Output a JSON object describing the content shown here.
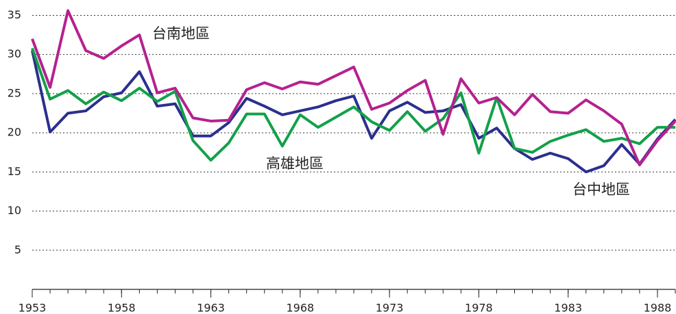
{
  "chart_data": {
    "type": "line",
    "x": [
      1953,
      1954,
      1955,
      1956,
      1957,
      1958,
      1959,
      1960,
      1961,
      1962,
      1963,
      1964,
      1965,
      1966,
      1967,
      1968,
      1969,
      1970,
      1971,
      1972,
      1973,
      1974,
      1975,
      1976,
      1977,
      1978,
      1979,
      1980,
      1981,
      1982,
      1983,
      1984,
      1985,
      1986,
      1987,
      1988,
      1989
    ],
    "series": [
      {
        "name": "台中地區",
        "color": "#2b2f8e",
        "values": [
          30.5,
          20.1,
          22.5,
          22.8,
          24.6,
          25.1,
          27.8,
          23.4,
          23.7,
          19.6,
          19.6,
          21.3,
          24.4,
          23.4,
          22.3,
          22.8,
          23.3,
          24.1,
          24.7,
          19.3,
          22.8,
          23.9,
          22.6,
          22.8,
          23.6,
          19.3,
          20.6,
          18.0,
          16.6,
          17.4,
          16.7,
          15.0,
          15.8,
          18.5,
          16.0,
          19.2,
          21.7
        ]
      },
      {
        "name": "高雄地區",
        "color": "#13a04a",
        "values": [
          30.8,
          24.3,
          25.4,
          23.7,
          25.2,
          24.1,
          25.7,
          24.0,
          25.3,
          19.0,
          16.5,
          18.7,
          22.4,
          22.4,
          18.3,
          22.3,
          20.7,
          22.0,
          23.3,
          21.4,
          20.3,
          22.7,
          20.2,
          21.8,
          25.1,
          17.4,
          24.5,
          18.0,
          17.5,
          18.9,
          19.7,
          20.4,
          18.9,
          19.3,
          18.6,
          20.7,
          20.7
        ]
      },
      {
        "name": "台南地區",
        "color": "#b5218f",
        "values": [
          32.0,
          25.8,
          35.6,
          30.5,
          29.5,
          31.1,
          32.5,
          25.1,
          25.7,
          21.9,
          21.5,
          21.6,
          25.5,
          26.4,
          25.6,
          26.5,
          26.2,
          27.3,
          28.4,
          23.0,
          23.8,
          25.4,
          26.7,
          19.8,
          26.9,
          23.8,
          24.5,
          22.3,
          24.9,
          22.7,
          22.5,
          24.2,
          22.8,
          21.1,
          15.9,
          19.0,
          21.5
        ]
      }
    ],
    "xlim": [
      1953,
      1989
    ],
    "xticks": [
      1953,
      1958,
      1963,
      1968,
      1973,
      1978,
      1983,
      1988
    ],
    "ylim": [
      0,
      36
    ],
    "yticks": [
      5,
      10,
      15,
      20,
      25,
      30,
      35
    ],
    "grid": true
  }
}
